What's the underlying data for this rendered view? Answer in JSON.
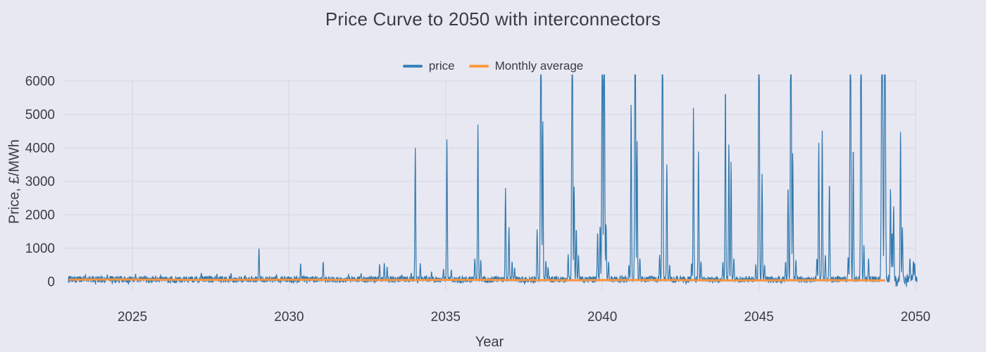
{
  "chart_data": {
    "type": "line",
    "title": "Price Curve to 2050 with interconnectors",
    "xlabel": "Year",
    "ylabel": "Price, £/MWh",
    "x_ticks": [
      2025,
      2030,
      2035,
      2040,
      2045,
      2050
    ],
    "y_ticks": [
      0,
      1000,
      2000,
      3000,
      4000,
      5000,
      6000
    ],
    "x_range": [
      2022.95,
      2050.05
    ],
    "y_axis_max": 6000,
    "grid": true,
    "legend_position": "top-center",
    "colors": {
      "background": "#e8e8f2",
      "grid": "#dadae7",
      "text": "#3b3b44",
      "price": "#3079ae",
      "monthly_average": "#f79440"
    },
    "legend": [
      {
        "label": "price",
        "color": "#3c82ba"
      },
      {
        "label": "Monthly average",
        "color": "#fb9a40"
      }
    ],
    "series": [
      {
        "name": "price",
        "style": "spiky-line",
        "baseline_mean": 55,
        "baseline_band": [
          -95,
          165
        ],
        "post_2049_band": [
          -165,
          220
        ],
        "spikes": [
          {
            "x": 2023.5,
            "v": 200
          },
          {
            "x": 2024.2,
            "v": 210
          },
          {
            "x": 2025.1,
            "v": 230
          },
          {
            "x": 2025.9,
            "v": 190
          },
          {
            "x": 2027.2,
            "v": 260
          },
          {
            "x": 2027.7,
            "v": 230
          },
          {
            "x": 2028.15,
            "v": 250
          },
          {
            "x": 2028.6,
            "v": 180
          },
          {
            "x": 2029.04,
            "v": 1000
          },
          {
            "x": 2029.6,
            "v": 200
          },
          {
            "x": 2030.37,
            "v": 550
          },
          {
            "x": 2031.09,
            "v": 600
          },
          {
            "x": 2031.9,
            "v": 210
          },
          {
            "x": 2032.3,
            "v": 250
          },
          {
            "x": 2032.89,
            "v": 530
          },
          {
            "x": 2033.04,
            "v": 560
          },
          {
            "x": 2033.13,
            "v": 450
          },
          {
            "x": 2033.6,
            "v": 210
          },
          {
            "x": 2033.9,
            "v": 260
          },
          {
            "x": 2034.03,
            "v": 4000
          },
          {
            "x": 2034.19,
            "v": 550
          },
          {
            "x": 2034.55,
            "v": 300
          },
          {
            "x": 2034.93,
            "v": 380
          },
          {
            "x": 2035.04,
            "v": 4300
          },
          {
            "x": 2035.18,
            "v": 360
          },
          {
            "x": 2035.93,
            "v": 700
          },
          {
            "x": 2036.03,
            "v": 4700
          },
          {
            "x": 2036.12,
            "v": 650
          },
          {
            "x": 2036.91,
            "v": 2800
          },
          {
            "x": 2037.02,
            "v": 1650
          },
          {
            "x": 2037.12,
            "v": 600
          },
          {
            "x": 2037.2,
            "v": 420
          },
          {
            "x": 2037.92,
            "v": 1580
          },
          {
            "x": 2038.04,
            "v": 9000,
            "w": 0.022
          },
          {
            "x": 2038.1,
            "v": 4850
          },
          {
            "x": 2038.2,
            "v": 620
          },
          {
            "x": 2038.27,
            "v": 430
          },
          {
            "x": 2038.91,
            "v": 820
          },
          {
            "x": 2039.04,
            "v": 9000,
            "w": 0.022
          },
          {
            "x": 2039.1,
            "v": 2880
          },
          {
            "x": 2039.17,
            "v": 1600
          },
          {
            "x": 2039.24,
            "v": 800
          },
          {
            "x": 2039.85,
            "v": 1500
          },
          {
            "x": 2039.93,
            "v": 1700
          },
          {
            "x": 2040.0,
            "v": 9000,
            "w": 0.022
          },
          {
            "x": 2040.06,
            "v": 9000,
            "w": 0.022
          },
          {
            "x": 2040.12,
            "v": 1730
          },
          {
            "x": 2040.2,
            "v": 600
          },
          {
            "x": 2040.85,
            "v": 500
          },
          {
            "x": 2040.92,
            "v": 5350
          },
          {
            "x": 2041.05,
            "v": 9000,
            "w": 0.022
          },
          {
            "x": 2041.11,
            "v": 4200
          },
          {
            "x": 2041.2,
            "v": 700
          },
          {
            "x": 2041.83,
            "v": 800
          },
          {
            "x": 2041.92,
            "v": 9000,
            "w": 0.022
          },
          {
            "x": 2042.06,
            "v": 3550
          },
          {
            "x": 2042.15,
            "v": 500
          },
          {
            "x": 2042.85,
            "v": 550
          },
          {
            "x": 2042.91,
            "v": 5200
          },
          {
            "x": 2043.07,
            "v": 3890
          },
          {
            "x": 2043.15,
            "v": 600
          },
          {
            "x": 2043.85,
            "v": 600
          },
          {
            "x": 2043.93,
            "v": 5880
          },
          {
            "x": 2044.04,
            "v": 4150
          },
          {
            "x": 2044.11,
            "v": 3580
          },
          {
            "x": 2044.2,
            "v": 700
          },
          {
            "x": 2044.9,
            "v": 520
          },
          {
            "x": 2045.0,
            "v": 9000,
            "w": 0.022
          },
          {
            "x": 2045.1,
            "v": 3260
          },
          {
            "x": 2045.18,
            "v": 500
          },
          {
            "x": 2045.85,
            "v": 600
          },
          {
            "x": 2045.93,
            "v": 2880
          },
          {
            "x": 2046.02,
            "v": 9000,
            "w": 0.022
          },
          {
            "x": 2046.08,
            "v": 3890
          },
          {
            "x": 2046.18,
            "v": 650
          },
          {
            "x": 2046.85,
            "v": 700
          },
          {
            "x": 2046.91,
            "v": 4150
          },
          {
            "x": 2047.02,
            "v": 4570
          },
          {
            "x": 2047.12,
            "v": 800
          },
          {
            "x": 2047.25,
            "v": 2990
          },
          {
            "x": 2047.85,
            "v": 750
          },
          {
            "x": 2047.92,
            "v": 9000,
            "w": 0.022
          },
          {
            "x": 2048.01,
            "v": 4060
          },
          {
            "x": 2048.26,
            "v": 9000,
            "w": 0.022
          },
          {
            "x": 2048.35,
            "v": 1090
          },
          {
            "x": 2048.5,
            "v": 700
          },
          {
            "x": 2048.93,
            "v": 9000,
            "w": 0.028
          },
          {
            "x": 2049.02,
            "v": 9000,
            "w": 0.026
          },
          {
            "x": 2049.2,
            "v": 2800
          },
          {
            "x": 2049.25,
            "v": 1500
          },
          {
            "x": 2049.3,
            "v": 2280
          },
          {
            "x": 2049.52,
            "v": 4530
          },
          {
            "x": 2049.58,
            "v": 1640
          },
          {
            "x": 2049.82,
            "v": 700
          },
          {
            "x": 2049.93,
            "v": 620
          },
          {
            "x": 2049.97,
            "v": 560
          }
        ]
      },
      {
        "name": "Monthly average",
        "style": "line",
        "x_start": 2023.0,
        "x_end": 2049.0,
        "start_value": 60,
        "end_value": 38
      }
    ]
  }
}
